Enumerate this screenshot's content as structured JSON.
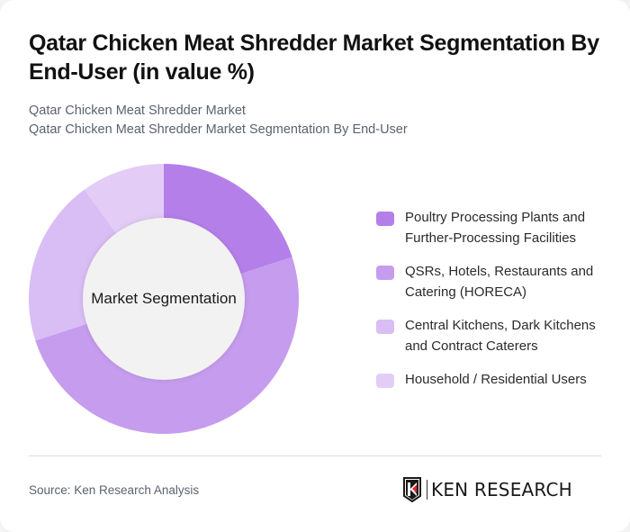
{
  "header": {
    "title": "Qatar Chicken Meat Shredder Market Segmentation By End-User (in value %)",
    "subtitle_line1": "Qatar Chicken Meat Shredder Market",
    "subtitle_line2": "Qatar Chicken Meat Shredder Market Segmentation By End-User"
  },
  "chart": {
    "center_label": "Market Segmentation"
  },
  "legend": {
    "items": [
      {
        "label": "Poultry Processing Plants and Further-Processing Facilities",
        "color": "#B57FEA"
      },
      {
        "label": "QSRs, Hotels, Restaurants and Catering (HORECA)",
        "color": "#C69CEE"
      },
      {
        "label": "Central Kitchens, Dark Kitchens and Contract Caterers",
        "color": "#D9BDF5"
      },
      {
        "label": "Household / Residential Users",
        "color": "#E3CDF7"
      }
    ]
  },
  "footer": {
    "source": "Source: Ken Research Analysis",
    "logo_text": "KEN RESEARCH"
  },
  "chart_data": {
    "type": "pie",
    "subtype": "donut",
    "title": "Qatar Chicken Meat Shredder Market Segmentation By End-User (in value %)",
    "center_label": "Market Segmentation",
    "categories": [
      "Poultry Processing Plants and Further-Processing Facilities",
      "QSRs, Hotels, Restaurants and Catering (HORECA)",
      "Central Kitchens, Dark Kitchens and Contract Caterers",
      "Household / Residential Users"
    ],
    "values": [
      20,
      50,
      20,
      10
    ],
    "colors": [
      "#B57FEA",
      "#C69CEE",
      "#D9BDF5",
      "#E3CDF7"
    ],
    "unit": "%",
    "legend_position": "right",
    "start_angle": "12 o'clock, clockwise"
  }
}
